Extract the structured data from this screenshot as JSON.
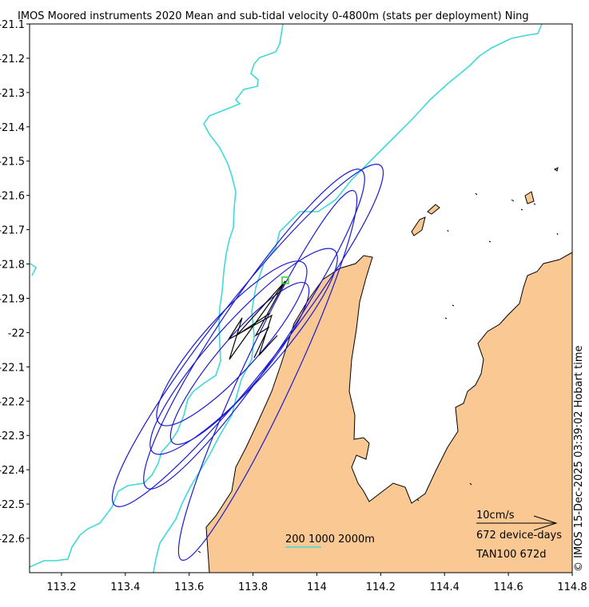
{
  "title": "IMOS Moored instruments 2020 Mean and sub-tidal velocity 0-4800m (stats per deployment) Ning",
  "side_label": "© IMOS 15-Dec-2025 03:39:02 Hobart time",
  "x_ticks": [
    "113.2",
    "113.4",
    "113.6",
    "113.8",
    "114",
    "114.2",
    "114.4",
    "114.6",
    "114.8"
  ],
  "y_ticks": [
    "-21.1",
    "-21.2",
    "-21.3",
    "-21.4",
    "-21.5",
    "-21.6",
    "-21.7",
    "-21.8",
    "-21.9",
    "-22",
    "-22.1",
    "-22.2",
    "-22.3",
    "-22.4",
    "-22.5",
    "-22.6"
  ],
  "legend": {
    "scale_speed": "10cm/s",
    "device_days": "672 device-days",
    "station": "TAN100 672d",
    "isobaths": "200 1000 2000m"
  },
  "colors": {
    "land": "#f9c893",
    "isobath": "#40d9d9",
    "ellipse": "#1a1ad6",
    "mooring": "#33cc33",
    "vector": "#000000"
  }
}
